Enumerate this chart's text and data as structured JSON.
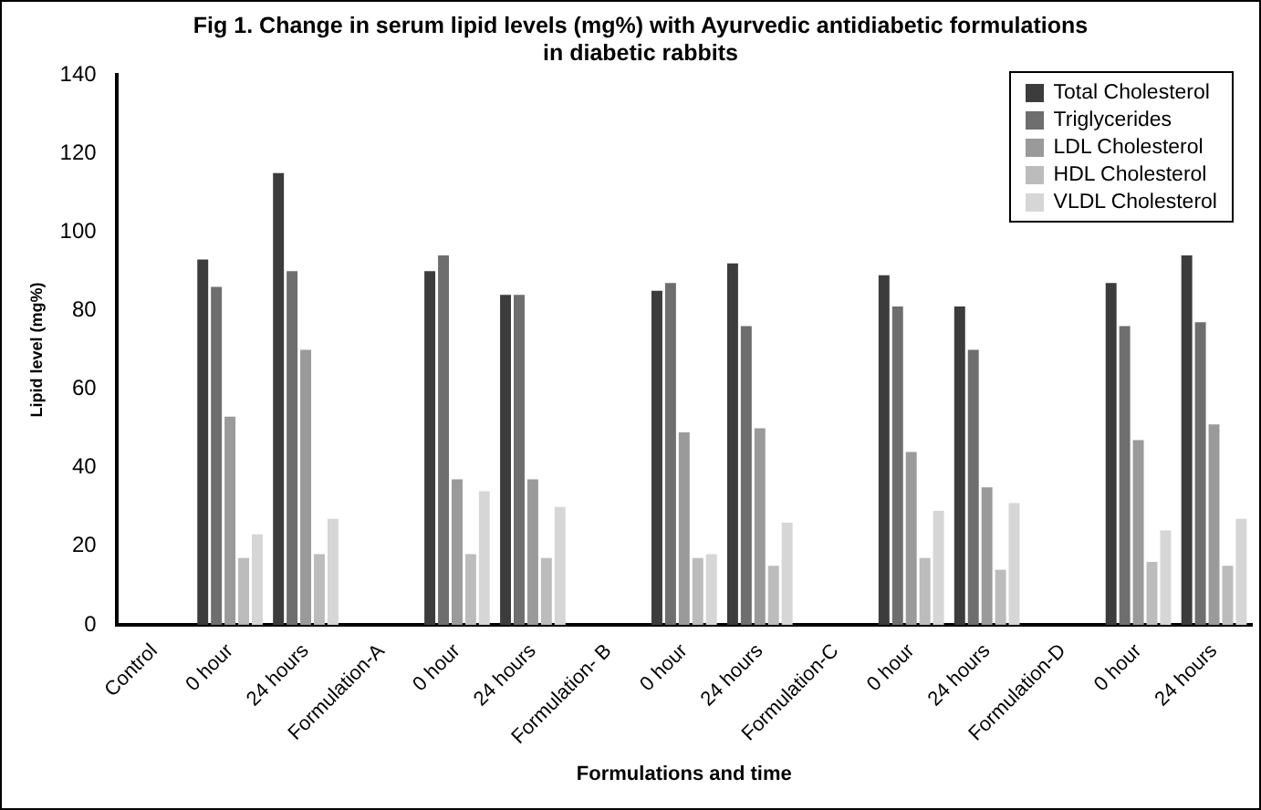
{
  "chart_data": {
    "type": "bar",
    "title": "Fig 1. Change in serum lipid levels  (mg%) with Ayurvedic antidiabetic formulations in diabetic rabbits",
    "xlabel": "Formulations and time",
    "ylabel": "Lipid level (mg%)",
    "categories": [
      "Control",
      "0 hour",
      "24 hours",
      "Formulation-A",
      "0 hour",
      "24 hours",
      "Formulation- B",
      "0 hour",
      "24 hours",
      "Formulation-C",
      "0 hour",
      "24 hours",
      "Formulation-D",
      "0 hour",
      "24 hours"
    ],
    "series": [
      {
        "name": "Total Cholesterol",
        "color": "#3c3c3c",
        "values": [
          null,
          93,
          115,
          null,
          90,
          84,
          null,
          85,
          92,
          null,
          89,
          81,
          null,
          87,
          94
        ]
      },
      {
        "name": "Triglycerides",
        "color": "#6e6e6e",
        "values": [
          null,
          86,
          90,
          null,
          94,
          84,
          null,
          87,
          76,
          null,
          81,
          70,
          null,
          76,
          77
        ]
      },
      {
        "name": "LDL Cholesterol",
        "color": "#9a9a9a",
        "values": [
          null,
          53,
          70,
          null,
          37,
          37,
          null,
          49,
          50,
          null,
          44,
          35,
          null,
          47,
          51
        ]
      },
      {
        "name": "HDL Cholesterol",
        "color": "#bcbcbc",
        "values": [
          null,
          17,
          18,
          null,
          18,
          17,
          null,
          17,
          15,
          null,
          17,
          14,
          null,
          16,
          15
        ]
      },
      {
        "name": "VLDL Cholesterol",
        "color": "#d6d6d6",
        "values": [
          null,
          23,
          27,
          null,
          34,
          30,
          null,
          18,
          26,
          null,
          29,
          31,
          null,
          24,
          27
        ]
      }
    ],
    "ylim": [
      0,
      140
    ],
    "yticks": [
      0,
      20,
      40,
      60,
      80,
      100,
      120,
      140
    ],
    "grid": false,
    "legend": "top right"
  }
}
